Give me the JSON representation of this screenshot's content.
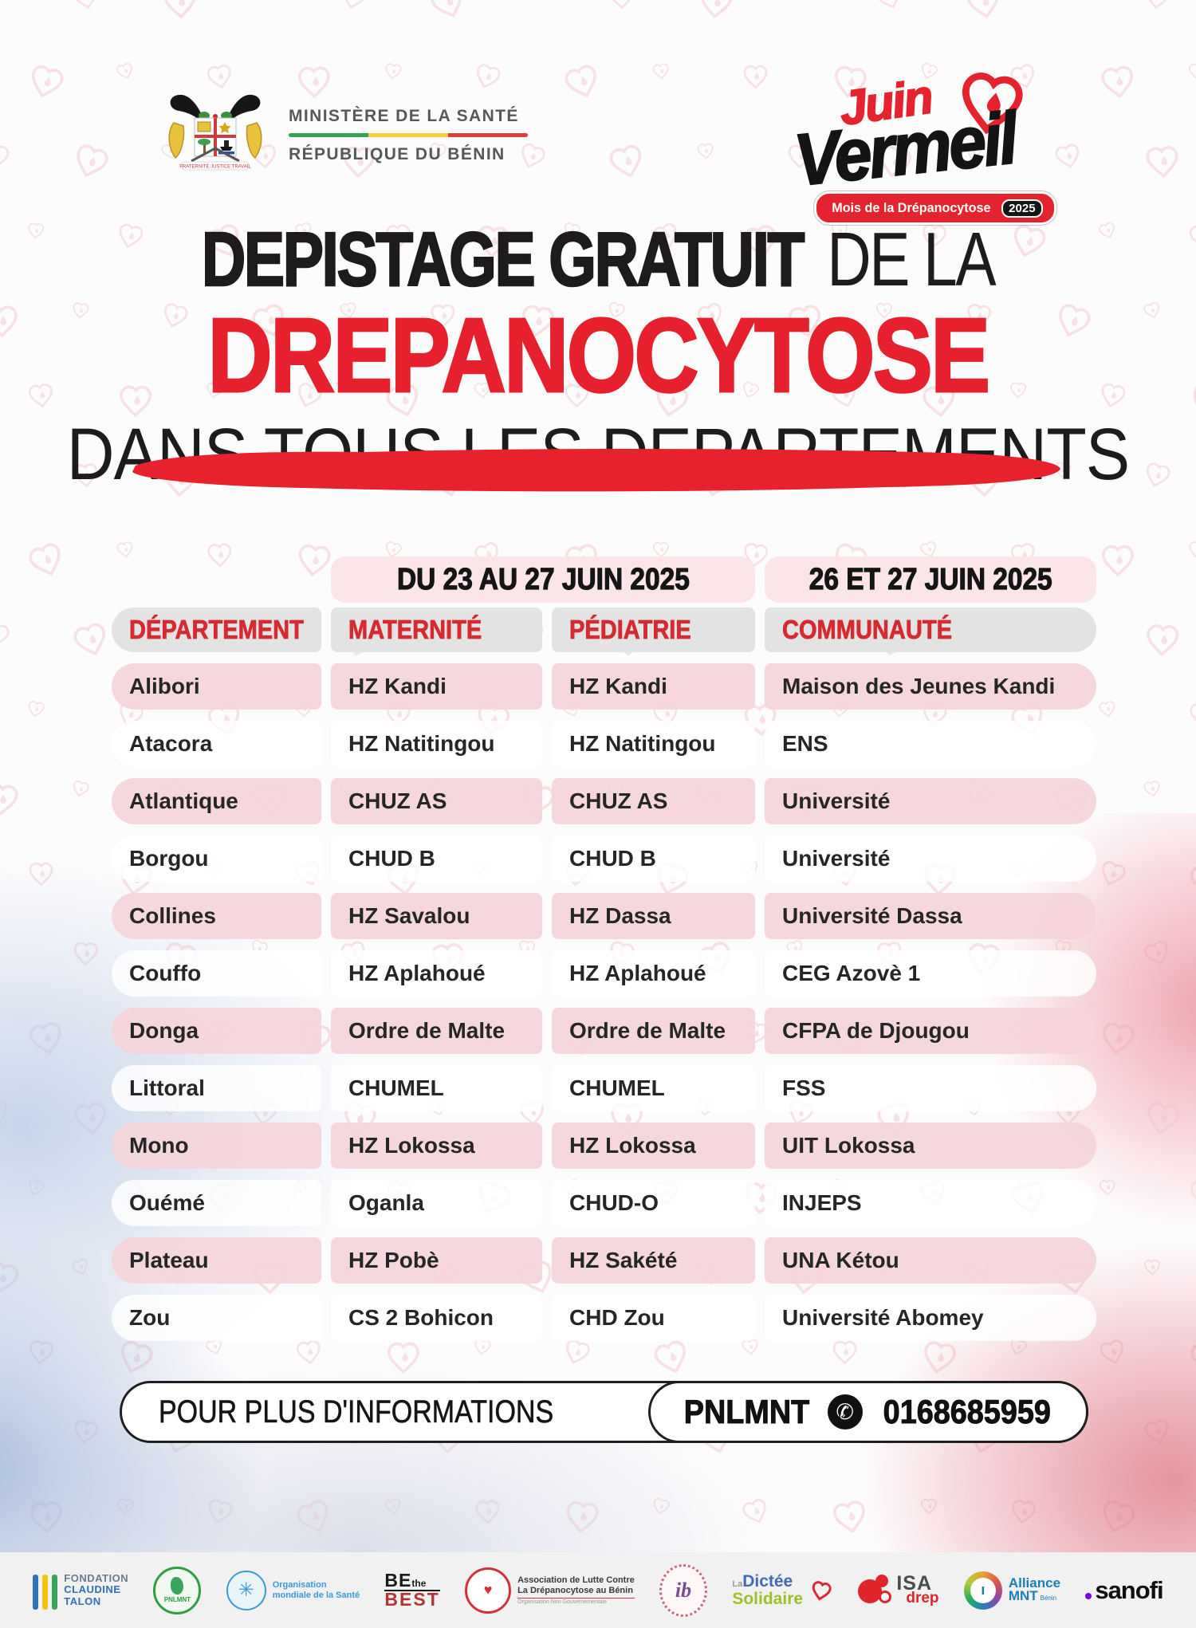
{
  "header": {
    "ministry_name": "MINISTÈRE DE LA SANTÉ",
    "republic": "RÉPUBLIQUE DU BÉNIN",
    "motto": "FRATERNITÉ JUSTICE TRAVAIL",
    "event": {
      "word1": "Juin",
      "word2": "Vermeil",
      "banner": "Mois de la Drépanocytose",
      "year": "2025",
      "heart_icon": "heart-drop-icon"
    }
  },
  "title": {
    "line1_strong": "DEPISTAGE GRATUIT",
    "line1_rest": "DE LA",
    "line2": "DREPANOCYTOSE",
    "line3": "DANS TOUS LES DEPARTEMENTS"
  },
  "table": {
    "date_header_left": "DU 23 AU 27 JUIN 2025",
    "date_header_right": "26 ET 27 JUIN 2025",
    "columns": [
      "DÉPARTEMENT",
      "MATERNITÉ",
      "PÉDIATRIE",
      "COMMUNAUTÉ"
    ],
    "rows": [
      {
        "department": "Alibori",
        "maternite": "HZ Kandi",
        "pediatrie": "HZ Kandi",
        "communaute": "Maison des Jeunes Kandi"
      },
      {
        "department": "Atacora",
        "maternite": "HZ Natitingou",
        "pediatrie": "HZ Natitingou",
        "communaute": "ENS"
      },
      {
        "department": "Atlantique",
        "maternite": "CHUZ AS",
        "pediatrie": "CHUZ AS",
        "communaute": "Université"
      },
      {
        "department": "Borgou",
        "maternite": "CHUD B",
        "pediatrie": "CHUD B",
        "communaute": "Université"
      },
      {
        "department": "Collines",
        "maternite": "HZ Savalou",
        "pediatrie": "HZ Dassa",
        "communaute": "Université Dassa"
      },
      {
        "department": "Couffo",
        "maternite": "HZ Aplahoué",
        "pediatrie": "HZ Aplahoué",
        "communaute": "CEG Azovè 1"
      },
      {
        "department": "Donga",
        "maternite": "Ordre de Malte",
        "pediatrie": "Ordre de Malte",
        "communaute": "CFPA de Djougou"
      },
      {
        "department": "Littoral",
        "maternite": "CHUMEL",
        "pediatrie": "CHUMEL",
        "communaute": "FSS"
      },
      {
        "department": "Mono",
        "maternite": "HZ Lokossa",
        "pediatrie": "HZ Lokossa",
        "communaute": "UIT Lokossa"
      },
      {
        "department": "Ouémé",
        "maternite": "Oganla",
        "pediatrie": "CHUD-O",
        "communaute": "INJEPS"
      },
      {
        "department": "Plateau",
        "maternite": "HZ Pobè",
        "pediatrie": "HZ Sakété",
        "communaute": "UNA Kétou"
      },
      {
        "department": "Zou",
        "maternite": "CS 2 Bohicon",
        "pediatrie": "CHD Zou",
        "communaute": "Université Abomey"
      }
    ]
  },
  "footer": {
    "info_label": "POUR PLUS D'INFORMATIONS",
    "contact_name": "PNLMNT",
    "whatsapp_icon": "whatsapp-icon",
    "phone": "0168685959"
  },
  "partners": {
    "fondation_claudine_talon": {
      "line1": "FONDATION",
      "line2": "CLAUDINE",
      "line3": "TALON"
    },
    "pnlmnt": {
      "label": "PNLMNT"
    },
    "oms": {
      "line1": "Organisation",
      "line2": "mondiale de la Santé"
    },
    "be_the_best": {
      "line1": "BE",
      "line2": "the",
      "line3": "BEST"
    },
    "alcd": {
      "line1": "Association de Lutte Contre",
      "line2": "La Drépanocytose au Bénin",
      "line3": "Organisation Non Gouvernementale"
    },
    "feib": {
      "monogram": "ib"
    },
    "dictee_solidaire": {
      "line1": "La",
      "line2": "Dictée",
      "line3": "Solidaire"
    },
    "isa_drep": {
      "line1": "ISA",
      "line2": "drep"
    },
    "alliance_mnt": {
      "line1": "Alliance",
      "line2": "MNT",
      "line3": "Bénin"
    },
    "sanofi": {
      "label": "sanofi"
    }
  },
  "colors": {
    "accent_red": "#e4232e",
    "title_black": "#1e1b1c",
    "pink_band": "#fbe5e8",
    "pink_row": "#f5d5db",
    "gray_band": "#e4e3e4",
    "header_red": "#d42a30"
  }
}
